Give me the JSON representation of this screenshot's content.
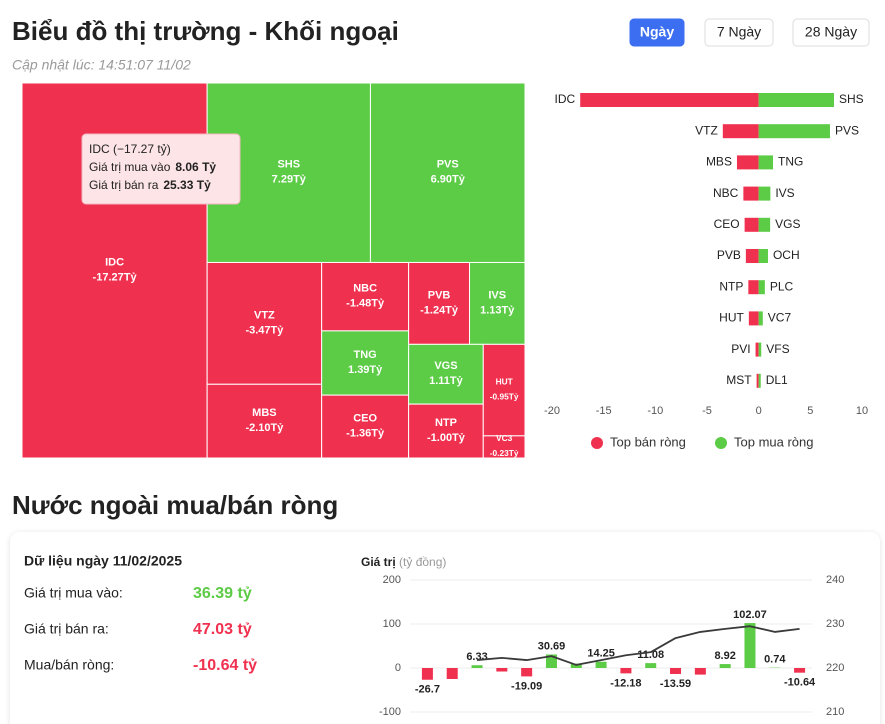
{
  "header": {
    "title": "Biểu đồ thị trường - Khối ngoại",
    "updated": "Cập nhật lúc: 14:51:07 11/02",
    "tabs": [
      "Ngày",
      "7 Ngày",
      "28 Ngày"
    ],
    "active_tab": 0,
    "active_color": "#3b6ef0"
  },
  "treemap": {
    "type": "treemap",
    "negative_color": "#f0304f",
    "positive_color": "#5ccb45",
    "items": [
      {
        "name": "IDC",
        "value": -17.27,
        "value_label": "-17.27Tỷ"
      },
      {
        "name": "SHS",
        "value": 7.29,
        "value_label": "7.29Tỷ"
      },
      {
        "name": "PVS",
        "value": 6.9,
        "value_label": "6.90Tỷ"
      },
      {
        "name": "VTZ",
        "value": -3.47,
        "value_label": "-3.47Tỷ"
      },
      {
        "name": "MBS",
        "value": -2.1,
        "value_label": "-2.10Tỷ"
      },
      {
        "name": "NBC",
        "value": -1.48,
        "value_label": "-1.48Tỷ"
      },
      {
        "name": "TNG",
        "value": 1.39,
        "value_label": "1.39Tỷ"
      },
      {
        "name": "CEO",
        "value": -1.36,
        "value_label": "-1.36Tỷ"
      },
      {
        "name": "PVB",
        "value": -1.24,
        "value_label": "-1.24Tỷ"
      },
      {
        "name": "IVS",
        "value": 1.13,
        "value_label": "1.13Tỷ"
      },
      {
        "name": "VGS",
        "value": 1.11,
        "value_label": "1.11Tỷ"
      },
      {
        "name": "NTP",
        "value": -1.0,
        "value_label": "-1.00Tỷ"
      },
      {
        "name": "HUT",
        "value": -0.95,
        "value_label": "-0.95Tỷ"
      },
      {
        "name": "VC3",
        "value": -0.23,
        "value_label": "-0.23Tỷ"
      }
    ],
    "tooltip": {
      "title": "IDC (−17.27 tỷ)",
      "rows": [
        {
          "label": "Giá trị mua vào",
          "value": "8.06 Tỷ"
        },
        {
          "label": "Giá trị bán ra",
          "value": "25.33 Tỷ"
        }
      ]
    }
  },
  "top_chart": {
    "type": "bar",
    "sell": {
      "name": "Top bán ròng",
      "color": "#f0304f",
      "categories": [
        "IDC",
        "VTZ",
        "MBS",
        "NBC",
        "CEO",
        "PVB",
        "NTP",
        "HUT",
        "PVI",
        "MST"
      ],
      "values": [
        -17.27,
        -3.47,
        -2.1,
        -1.48,
        -1.36,
        -1.24,
        -1.0,
        -0.95,
        -0.3,
        -0.2
      ]
    },
    "buy": {
      "name": "Top mua ròng",
      "color": "#5ccb45",
      "categories": [
        "SHS",
        "PVS",
        "TNG",
        "IVS",
        "VGS",
        "OCH",
        "PLC",
        "VC7",
        "VFS",
        "DL1"
      ],
      "values": [
        7.29,
        6.9,
        1.39,
        1.13,
        1.11,
        0.9,
        0.6,
        0.4,
        0.25,
        0.2
      ]
    },
    "xlim": [
      -20,
      10
    ],
    "xticks": [
      -20,
      -15,
      -10,
      -5,
      0,
      5,
      10
    ]
  },
  "section_title": "Nước ngoài mua/bán ròng",
  "summary": {
    "title": "Dữ liệu ngày 11/02/2025",
    "rows": [
      {
        "label": "Giá trị mua vào:",
        "value": "36.39 tỷ",
        "color": "#5ccb45"
      },
      {
        "label": "Giá trị bán ra:",
        "value": "47.03 tỷ",
        "color": "#f0304f"
      },
      {
        "label": "Mua/bán ròng:",
        "value": "-10.64 tỷ",
        "color": "#f0304f"
      }
    ]
  },
  "net_chart": {
    "type": "bar",
    "y_label": "Giá trị",
    "y_unit": "(tỷ đồng)",
    "positive_color": "#5ccb45",
    "negative_color": "#f0304f",
    "values": [
      -26.7,
      -25,
      6.33,
      -8,
      -19.09,
      30.69,
      10,
      14.25,
      -12.18,
      11.08,
      -13.59,
      -15,
      8.92,
      102.07,
      0.74,
      -10.64
    ],
    "value_labels": [
      "-26.7",
      null,
      "6.33",
      null,
      "-19.09",
      "30.69",
      null,
      "14.25",
      "-12.18",
      "11.08",
      "-13.59",
      null,
      "8.92",
      "102.07",
      "0.74",
      "-10.64"
    ],
    "ylim": [
      -100,
      200
    ],
    "yticks": [
      200,
      100,
      0,
      -100
    ],
    "line": {
      "values": [
        null,
        null,
        221.8,
        222.3,
        221.8,
        222.7,
        220.7,
        221.8,
        222.9,
        223.6,
        226.8,
        228.2,
        228.9,
        229.5,
        228.2,
        228.9
      ],
      "color": "#3a3a3a",
      "axis": "y2"
    },
    "y2lim": [
      210,
      240
    ],
    "y2ticks": [
      240,
      230,
      220,
      210
    ]
  }
}
